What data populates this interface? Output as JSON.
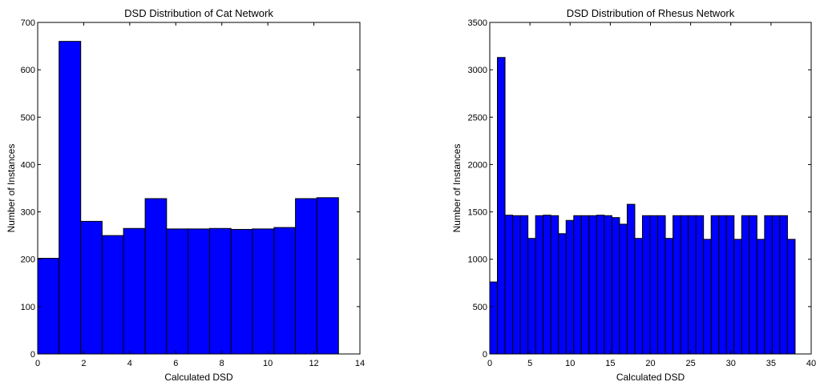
{
  "chart_data": [
    {
      "type": "bar",
      "title": "DSD Distribution of Cat Network",
      "xlabel": "Calculated DSD",
      "ylabel": "Number of Instances",
      "xlim": [
        0,
        14
      ],
      "ylim": [
        0,
        700
      ],
      "xticks": [
        0,
        2,
        4,
        6,
        8,
        10,
        12,
        14
      ],
      "yticks": [
        0,
        100,
        200,
        300,
        400,
        500,
        600,
        700
      ],
      "grid": false,
      "bar_color": "#0000ff",
      "bars": [
        {
          "x0": 0.0,
          "x1": 0.93,
          "value": 202
        },
        {
          "x0": 0.93,
          "x1": 1.87,
          "value": 660
        },
        {
          "x0": 1.87,
          "x1": 2.8,
          "value": 280
        },
        {
          "x0": 2.8,
          "x1": 3.73,
          "value": 250
        },
        {
          "x0": 3.73,
          "x1": 4.67,
          "value": 265
        },
        {
          "x0": 4.67,
          "x1": 5.6,
          "value": 328
        },
        {
          "x0": 5.6,
          "x1": 6.53,
          "value": 264
        },
        {
          "x0": 6.53,
          "x1": 7.47,
          "value": 264
        },
        {
          "x0": 7.47,
          "x1": 8.4,
          "value": 265
        },
        {
          "x0": 8.4,
          "x1": 9.33,
          "value": 263
        },
        {
          "x0": 9.33,
          "x1": 10.27,
          "value": 264
        },
        {
          "x0": 10.27,
          "x1": 11.2,
          "value": 267
        },
        {
          "x0": 11.2,
          "x1": 12.13,
          "value": 328
        },
        {
          "x0": 12.13,
          "x1": 13.07,
          "value": 330
        }
      ]
    },
    {
      "type": "bar",
      "title": "DSD Distribution of Rhesus Network",
      "xlabel": "Calculated DSD",
      "ylabel": "Number of Instances",
      "xlim": [
        0,
        40
      ],
      "ylim": [
        0,
        3500
      ],
      "xticks": [
        0,
        5,
        10,
        15,
        20,
        25,
        30,
        35,
        40
      ],
      "yticks": [
        0,
        500,
        1000,
        1500,
        2000,
        2500,
        3000,
        3500
      ],
      "grid": false,
      "bar_color": "#0000ff",
      "bars": [
        {
          "x0": 0.0,
          "x1": 0.95,
          "value": 760
        },
        {
          "x0": 0.95,
          "x1": 1.9,
          "value": 3130
        },
        {
          "x0": 1.9,
          "x1": 2.85,
          "value": 1465
        },
        {
          "x0": 2.85,
          "x1": 3.8,
          "value": 1460
        },
        {
          "x0": 3.8,
          "x1": 4.75,
          "value": 1460
        },
        {
          "x0": 4.75,
          "x1": 5.7,
          "value": 1220
        },
        {
          "x0": 5.7,
          "x1": 6.65,
          "value": 1460
        },
        {
          "x0": 6.65,
          "x1": 7.6,
          "value": 1465
        },
        {
          "x0": 7.6,
          "x1": 8.55,
          "value": 1460
        },
        {
          "x0": 8.55,
          "x1": 9.5,
          "value": 1270
        },
        {
          "x0": 9.5,
          "x1": 10.45,
          "value": 1410
        },
        {
          "x0": 10.45,
          "x1": 11.4,
          "value": 1460
        },
        {
          "x0": 11.4,
          "x1": 12.35,
          "value": 1460
        },
        {
          "x0": 12.35,
          "x1": 13.3,
          "value": 1460
        },
        {
          "x0": 13.3,
          "x1": 14.25,
          "value": 1465
        },
        {
          "x0": 14.25,
          "x1": 15.2,
          "value": 1460
        },
        {
          "x0": 15.2,
          "x1": 16.15,
          "value": 1440
        },
        {
          "x0": 16.15,
          "x1": 17.1,
          "value": 1370
        },
        {
          "x0": 17.1,
          "x1": 18.05,
          "value": 1580
        },
        {
          "x0": 18.05,
          "x1": 19.0,
          "value": 1220
        },
        {
          "x0": 19.0,
          "x1": 19.95,
          "value": 1460
        },
        {
          "x0": 19.95,
          "x1": 20.9,
          "value": 1460
        },
        {
          "x0": 20.9,
          "x1": 21.85,
          "value": 1460
        },
        {
          "x0": 21.85,
          "x1": 22.8,
          "value": 1220
        },
        {
          "x0": 22.8,
          "x1": 23.75,
          "value": 1460
        },
        {
          "x0": 23.75,
          "x1": 24.7,
          "value": 1460
        },
        {
          "x0": 24.7,
          "x1": 25.65,
          "value": 1460
        },
        {
          "x0": 25.65,
          "x1": 26.6,
          "value": 1460
        },
        {
          "x0": 26.6,
          "x1": 27.55,
          "value": 1210
        },
        {
          "x0": 27.55,
          "x1": 28.5,
          "value": 1460
        },
        {
          "x0": 28.5,
          "x1": 29.45,
          "value": 1460
        },
        {
          "x0": 29.45,
          "x1": 30.4,
          "value": 1460
        },
        {
          "x0": 30.4,
          "x1": 31.35,
          "value": 1210
        },
        {
          "x0": 31.35,
          "x1": 32.3,
          "value": 1460
        },
        {
          "x0": 32.3,
          "x1": 33.25,
          "value": 1460
        },
        {
          "x0": 33.25,
          "x1": 34.2,
          "value": 1210
        },
        {
          "x0": 34.2,
          "x1": 35.15,
          "value": 1460
        },
        {
          "x0": 35.15,
          "x1": 36.1,
          "value": 1460
        },
        {
          "x0": 36.1,
          "x1": 37.05,
          "value": 1460
        },
        {
          "x0": 37.05,
          "x1": 38.0,
          "value": 1210
        }
      ]
    }
  ]
}
